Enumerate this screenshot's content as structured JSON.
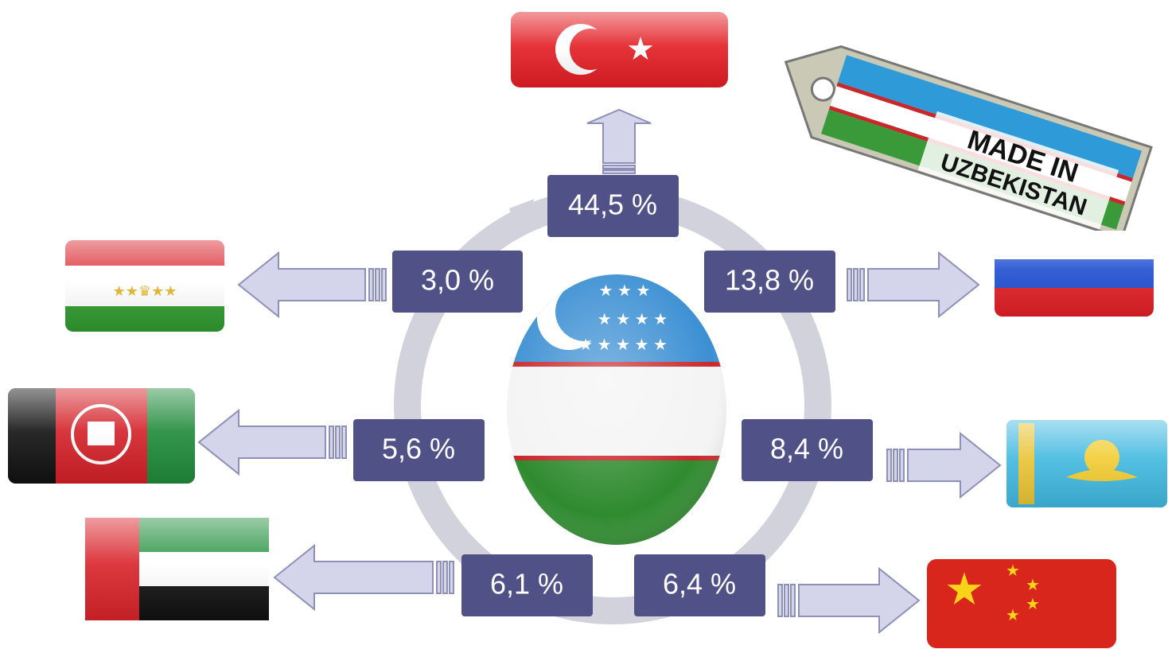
{
  "nodes": [
    {
      "label": "44,5 %"
    },
    {
      "label": "3,0 %"
    },
    {
      "label": "13,8 %"
    },
    {
      "label": "5,6 %"
    },
    {
      "label": "8,4 %"
    },
    {
      "label": "6,1 %"
    },
    {
      "label": "6,4 %"
    }
  ],
  "tag": {
    "line1": "MADE IN",
    "line2": "UZBEKISTAN"
  }
}
